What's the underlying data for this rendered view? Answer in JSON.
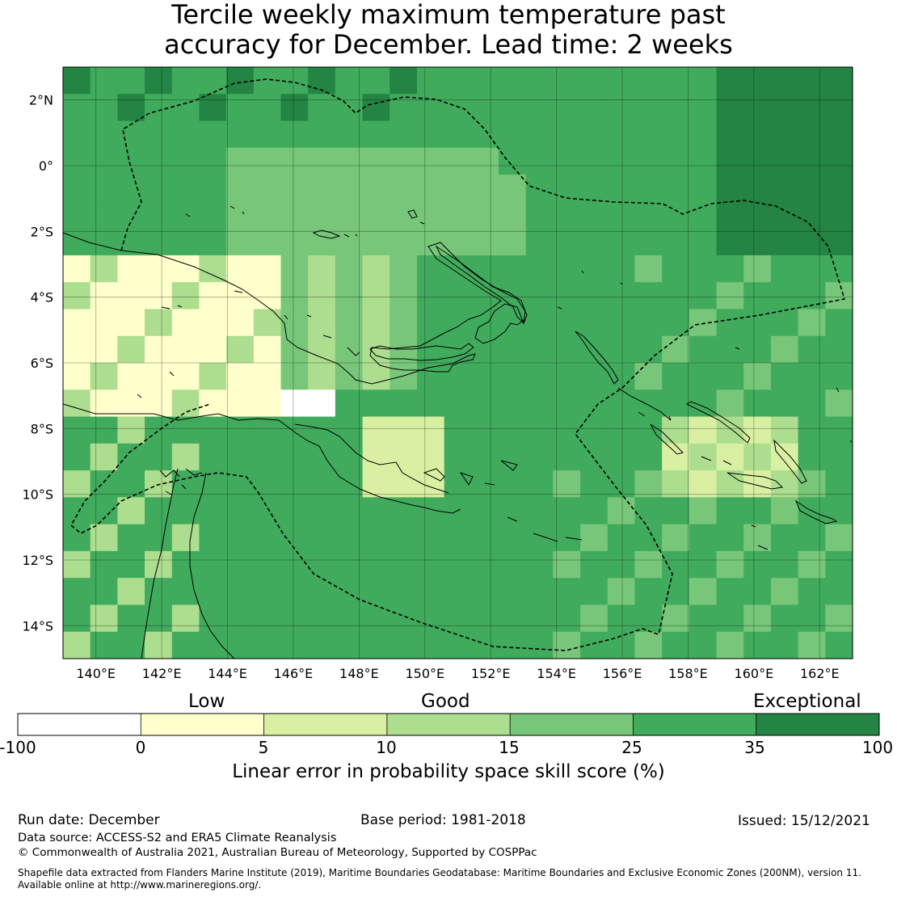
{
  "title": {
    "line1": "Tercile weekly maximum temperature past",
    "line2": "accuracy for December. Lead time: 2 weeks"
  },
  "map": {
    "lon_ticks": [
      "140°E",
      "142°E",
      "144°E",
      "146°E",
      "148°E",
      "150°E",
      "152°E",
      "154°E",
      "156°E",
      "158°E",
      "160°E",
      "162°E"
    ],
    "lat_ticks": [
      "2°N",
      "0°",
      "2°S",
      "4°S",
      "6°S",
      "8°S",
      "10°S",
      "12°S",
      "14°S"
    ],
    "lon_range": [
      139.0,
      163.0
    ],
    "lat_range": [
      -15.0,
      3.0
    ]
  },
  "colorbar": {
    "category_labels": [
      "Low",
      "Good",
      "Exceptional"
    ],
    "ticks": [
      "-100",
      "0",
      "5",
      "10",
      "15",
      "25",
      "35",
      "100"
    ],
    "colors": [
      "#ffffff",
      "#ffffcc",
      "#d9f0a3",
      "#addd8e",
      "#78c679",
      "#41ab5d",
      "#238443"
    ],
    "caption": "Linear error in probability space skill score (%)"
  },
  "footer": {
    "run_date": "Run date: December",
    "base_period": "Base period: 1981-2018",
    "issued": "Issued: 15/12/2021",
    "data_source": "Data source: ACCESS-S2 and ERA5 Climate Reanalysis",
    "copyright": "© Commonwealth of Australia 2021, Australian Bureau of Meteorology, Supported by COSPPac",
    "shapefile_line1": "Shapefile data extracted from Flanders Marine Institute (2019), Maritime Boundaries Geodatabase: Maritime Boundaries and Exclusive Economic Zones (200NM), version 11.",
    "shapefile_line2": "Available online at http://www.marineregions.org/."
  }
}
